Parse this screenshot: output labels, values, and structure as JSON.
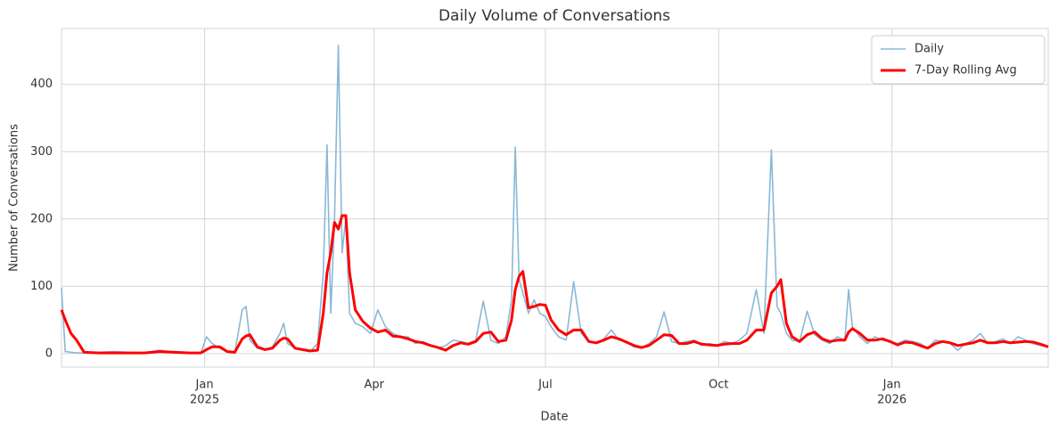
{
  "chart_data": {
    "type": "line",
    "title": "Daily Volume of Conversations",
    "xlabel": "Date",
    "ylabel": "Number of Conversations",
    "x": [
      0,
      2,
      5,
      8,
      12,
      20,
      28,
      36,
      44,
      52,
      60,
      68,
      74,
      77,
      80,
      84,
      88,
      92,
      96,
      98,
      100,
      104,
      108,
      112,
      116,
      118,
      120,
      124,
      128,
      132,
      136,
      139,
      141,
      143,
      145,
      147,
      149,
      151,
      153,
      156,
      160,
      164,
      168,
      172,
      176,
      180,
      184,
      188,
      192,
      196,
      200,
      204,
      208,
      212,
      216,
      220,
      224,
      228,
      232,
      236,
      239,
      241,
      243,
      245,
      248,
      251,
      254,
      257,
      260,
      264,
      268,
      272,
      276,
      280,
      284,
      288,
      292,
      296,
      300,
      304,
      308,
      312,
      316,
      320,
      324,
      328,
      332,
      336,
      340,
      344,
      348,
      352,
      356,
      360,
      364,
      369,
      373,
      377,
      380,
      382,
      385,
      388,
      392,
      396,
      400,
      404,
      408,
      412,
      416,
      418,
      420,
      424,
      428,
      432,
      436,
      440,
      444,
      448,
      452,
      456,
      460,
      464,
      468,
      472,
      476,
      480,
      484,
      488,
      492,
      496,
      500,
      504,
      508,
      512,
      516,
      520,
      524
    ],
    "series": [
      {
        "name": "Daily",
        "color": "#8ab8d8",
        "width": 1.6,
        "values": [
          98,
          3,
          2,
          1,
          1,
          2,
          3,
          2,
          1,
          5,
          2,
          1,
          1,
          25,
          15,
          8,
          3,
          2,
          65,
          70,
          20,
          8,
          5,
          10,
          30,
          45,
          15,
          8,
          5,
          3,
          15,
          120,
          310,
          60,
          200,
          458,
          150,
          200,
          60,
          45,
          40,
          30,
          65,
          40,
          30,
          25,
          25,
          15,
          18,
          12,
          8,
          12,
          20,
          18,
          15,
          20,
          78,
          20,
          15,
          25,
          80,
          307,
          110,
          90,
          60,
          80,
          60,
          55,
          40,
          25,
          20,
          107,
          30,
          18,
          15,
          22,
          35,
          20,
          18,
          10,
          8,
          15,
          25,
          62,
          18,
          15,
          18,
          20,
          12,
          15,
          12,
          18,
          15,
          20,
          30,
          95,
          30,
          303,
          70,
          60,
          30,
          20,
          18,
          63,
          28,
          20,
          15,
          25,
          20,
          95,
          40,
          25,
          15,
          25,
          20,
          18,
          15,
          20,
          18,
          15,
          8,
          20,
          18,
          15,
          5,
          15,
          20,
          30,
          15,
          18,
          22,
          15,
          25,
          20,
          15,
          12,
          10
        ]
      },
      {
        "name": "7-Day Rolling Avg",
        "color": "#ff0000",
        "width": 3,
        "values": [
          65,
          50,
          30,
          20,
          2,
          1,
          1,
          1,
          1,
          3,
          2,
          1,
          1,
          6,
          10,
          10,
          3,
          2,
          22,
          26,
          28,
          10,
          6,
          8,
          20,
          23,
          22,
          8,
          6,
          4,
          5,
          60,
          120,
          150,
          195,
          185,
          205,
          205,
          120,
          65,
          48,
          38,
          32,
          35,
          26,
          25,
          22,
          18,
          16,
          12,
          9,
          5,
          12,
          16,
          14,
          18,
          30,
          32,
          18,
          20,
          50,
          95,
          115,
          122,
          68,
          70,
          73,
          72,
          50,
          35,
          28,
          35,
          35,
          18,
          16,
          20,
          25,
          22,
          17,
          12,
          9,
          12,
          20,
          28,
          27,
          15,
          15,
          18,
          14,
          13,
          12,
          14,
          15,
          15,
          20,
          35,
          35,
          90,
          100,
          110,
          45,
          25,
          18,
          28,
          32,
          22,
          18,
          20,
          20,
          32,
          37,
          30,
          20,
          20,
          22,
          18,
          13,
          17,
          16,
          12,
          8,
          15,
          18,
          16,
          12,
          14,
          16,
          20,
          16,
          16,
          18,
          16,
          17,
          18,
          17,
          14,
          10
        ]
      }
    ],
    "xlim": [
      0,
      524
    ],
    "ylim": [
      -20,
      483
    ],
    "xticks": [
      {
        "value": 76,
        "label": "Jan"
      },
      {
        "value": 166,
        "label": "Apr"
      },
      {
        "value": 257,
        "label": "Jul"
      },
      {
        "value": 349,
        "label": "Oct"
      },
      {
        "value": 441,
        "label": "Jan"
      }
    ],
    "xtick_years": [
      {
        "value": 76,
        "label": "2025"
      },
      {
        "value": 441,
        "label": "2026"
      }
    ],
    "yticks": [
      0,
      100,
      200,
      300,
      400
    ],
    "grid": true,
    "legend": "upper right"
  }
}
